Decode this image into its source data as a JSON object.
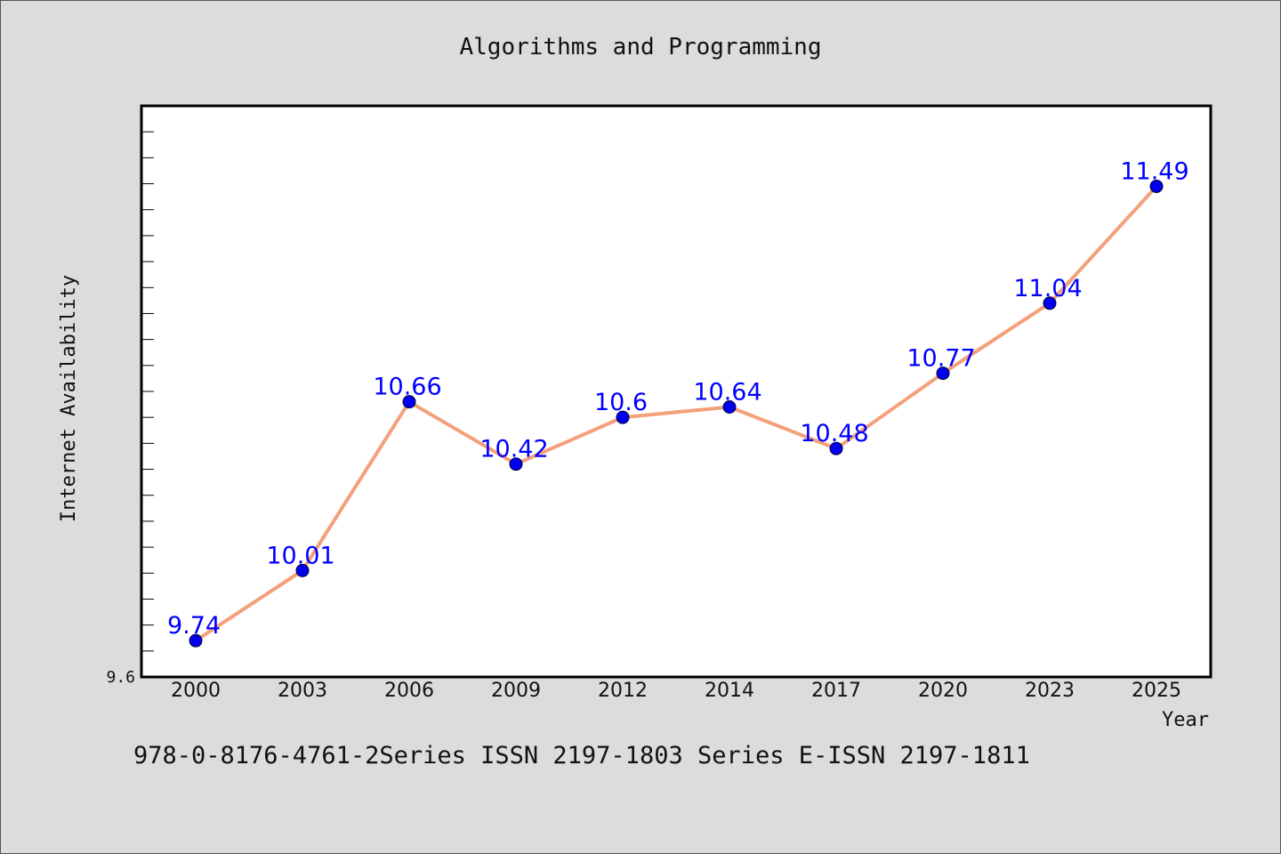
{
  "chart_data": {
    "type": "line",
    "title": "Algorithms and Programming",
    "xlabel": "Year",
    "ylabel": "Internet Availability",
    "categories": [
      "2000",
      "2003",
      "2006",
      "2009",
      "2012",
      "2014",
      "2017",
      "2020",
      "2023",
      "2025"
    ],
    "series": [
      {
        "values": [
          9.74,
          10.01,
          10.66,
          10.42,
          10.6,
          10.64,
          10.48,
          10.77,
          11.04,
          11.49
        ]
      }
    ],
    "data_labels": [
      "9.74",
      "10.01",
      "10.66",
      "10.42",
      "10.6",
      "10.64",
      "10.48",
      "10.77",
      "11.04",
      "11.49"
    ],
    "y_tick_label": "9.6",
    "ylim": [
      9.6,
      11.8
    ],
    "grid": false,
    "legend": "none",
    "colors": {
      "line": "#f4a07a",
      "marker": "#0000ee",
      "data_label": "#0000ff",
      "background": "#dcdcdc",
      "plot_background": "#ffffff"
    }
  },
  "footer": {
    "text": "978-0-8176-4761-2Series ISSN 2197-1803 Series E-ISSN 2197-1811"
  }
}
